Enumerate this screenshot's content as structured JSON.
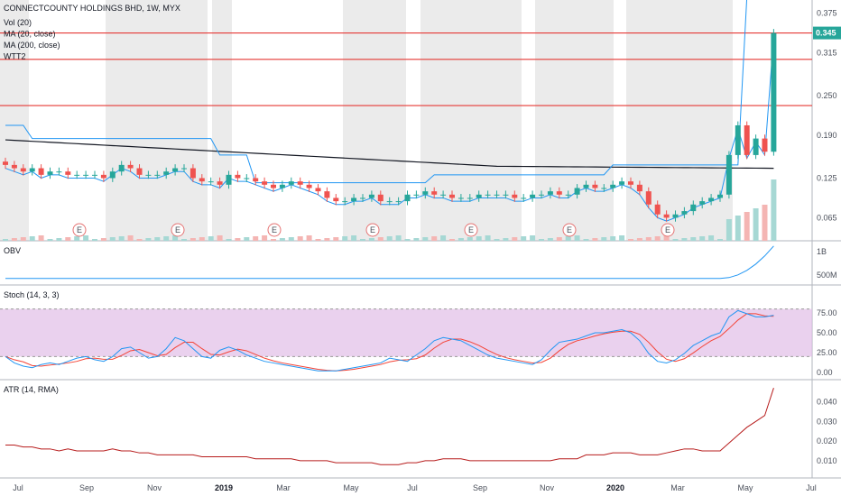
{
  "chart_data": [
    {
      "type": "candlestick",
      "title": "CONNECTCOUNTY HOLDINGS BHD, 1W, MYX",
      "indicators": [
        "Vol (20)",
        "MA (20, close)",
        "MA (200, close)",
        "WTT2"
      ],
      "x_ticks": [
        "Jul",
        "Sep",
        "Nov",
        "2019",
        "Mar",
        "May",
        "Jul",
        "Sep",
        "Nov",
        "2020",
        "Mar",
        "May",
        "Jul"
      ],
      "bold_ticks": [
        "2019",
        "2020"
      ],
      "y_ticks": [
        "0.375",
        "0.315",
        "0.250",
        "0.190",
        "0.125",
        "0.065"
      ],
      "last_price": "0.345",
      "last_price_value": 0.345,
      "hlines": [
        0.345,
        0.305,
        0.235
      ],
      "earnings_marker": "E",
      "close": [
        0.145,
        0.14,
        0.135,
        0.14,
        0.13,
        0.135,
        0.135,
        0.13,
        0.13,
        0.13,
        0.13,
        0.125,
        0.135,
        0.145,
        0.14,
        0.13,
        0.13,
        0.13,
        0.135,
        0.14,
        0.14,
        0.125,
        0.12,
        0.12,
        0.115,
        0.13,
        0.125,
        0.125,
        0.12,
        0.115,
        0.11,
        0.115,
        0.12,
        0.115,
        0.11,
        0.105,
        0.095,
        0.09,
        0.09,
        0.095,
        0.095,
        0.1,
        0.09,
        0.09,
        0.09,
        0.1,
        0.1,
        0.105,
        0.1,
        0.1,
        0.095,
        0.095,
        0.095,
        0.1,
        0.1,
        0.1,
        0.1,
        0.095,
        0.095,
        0.1,
        0.1,
        0.105,
        0.1,
        0.1,
        0.11,
        0.115,
        0.11,
        0.11,
        0.115,
        0.12,
        0.115,
        0.105,
        0.085,
        0.07,
        0.065,
        0.07,
        0.075,
        0.085,
        0.09,
        0.095,
        0.1,
        0.16,
        0.205,
        0.16,
        0.185,
        0.165,
        0.345
      ],
      "stoch": {
        "name": "Stoch (14, 3, 3)",
        "y_ticks": [
          "75.00",
          "50.00",
          "25.00",
          "0.00"
        ],
        "upper": 80,
        "lower": 20
      },
      "obv": {
        "name": "OBV",
        "y_ticks": [
          "1B",
          "500M"
        ]
      },
      "atr": {
        "name": "ATR (14, RMA)",
        "y_ticks": [
          "0.040",
          "0.030",
          "0.020",
          "0.010"
        ],
        "values": [
          0.018,
          0.018,
          0.017,
          0.017,
          0.016,
          0.016,
          0.015,
          0.016,
          0.015,
          0.015,
          0.015,
          0.015,
          0.016,
          0.015,
          0.015,
          0.014,
          0.014,
          0.013,
          0.013,
          0.013,
          0.013,
          0.013,
          0.012,
          0.012,
          0.012,
          0.012,
          0.012,
          0.012,
          0.011,
          0.011,
          0.011,
          0.011,
          0.011,
          0.01,
          0.01,
          0.01,
          0.01,
          0.009,
          0.009,
          0.009,
          0.009,
          0.009,
          0.008,
          0.008,
          0.008,
          0.009,
          0.009,
          0.01,
          0.01,
          0.011,
          0.011,
          0.011,
          0.01,
          0.01,
          0.01,
          0.01,
          0.01,
          0.01,
          0.01,
          0.01,
          0.01,
          0.01,
          0.011,
          0.011,
          0.011,
          0.013,
          0.013,
          0.013,
          0.014,
          0.014,
          0.014,
          0.013,
          0.013,
          0.013,
          0.014,
          0.015,
          0.016,
          0.016,
          0.015,
          0.015,
          0.015,
          0.019,
          0.023,
          0.027,
          0.03,
          0.033,
          0.047
        ]
      }
    }
  ],
  "colors": {
    "up": "#26a69a",
    "down": "#ef5350",
    "ma20": "#2196f3",
    "ma200": "#131722",
    "hline": "#e53935",
    "stoch_k": "#2196f3",
    "stoch_d": "#f44336",
    "stoch_band": "#e1bee7",
    "session_bg": "#ebebeb",
    "atr": "#b71c1c",
    "obv": "#2196f3"
  }
}
